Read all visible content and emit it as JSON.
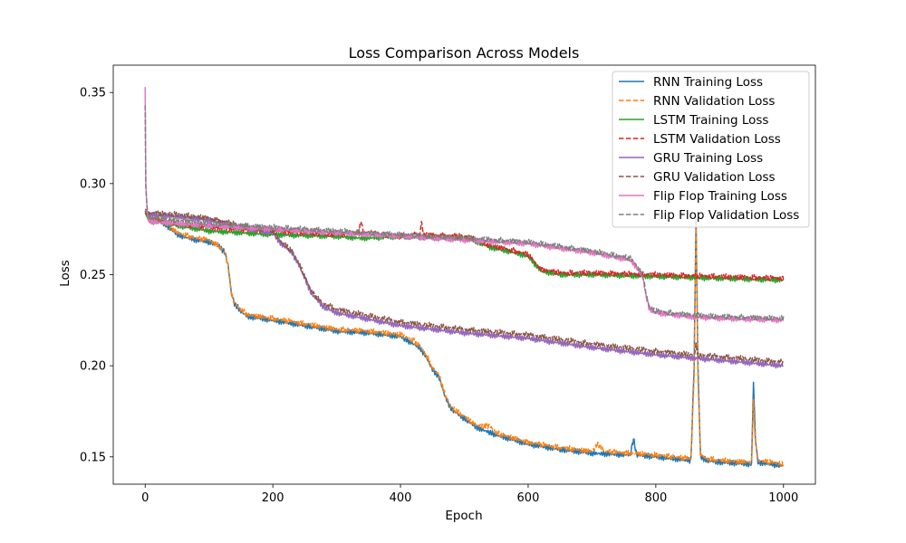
{
  "chart_data": {
    "type": "line",
    "title": "Loss Comparison Across Models",
    "xlabel": "Epoch",
    "ylabel": "Loss",
    "xlim": [
      -50,
      1050
    ],
    "ylim": [
      0.135,
      0.365
    ],
    "xticks": [
      0,
      200,
      400,
      600,
      800,
      1000
    ],
    "yticks": [
      0.15,
      0.2,
      0.25,
      0.3,
      0.35
    ],
    "xtick_labels": [
      "0",
      "200",
      "400",
      "600",
      "800",
      "1000"
    ],
    "ytick_labels": [
      "0.15",
      "0.20",
      "0.25",
      "0.30",
      "0.35"
    ],
    "grid": false,
    "legend_position": "top-right",
    "series": [
      {
        "name": "RNN Training Loss",
        "color": "#1f77b4",
        "dash": "solid",
        "x": [
          0,
          2,
          5,
          10,
          30,
          50,
          80,
          100,
          115,
          125,
          130,
          135,
          140,
          150,
          160,
          200,
          250,
          300,
          350,
          400,
          420,
          430,
          440,
          450,
          460,
          470,
          480,
          500,
          520,
          550,
          600,
          650,
          700,
          760,
          765,
          770,
          800,
          855,
          860,
          863,
          866,
          870,
          880,
          900,
          950,
          953,
          956,
          960,
          1000
        ],
        "y": [
          0.285,
          0.283,
          0.282,
          0.28,
          0.278,
          0.272,
          0.269,
          0.268,
          0.266,
          0.262,
          0.255,
          0.24,
          0.234,
          0.23,
          0.227,
          0.225,
          0.222,
          0.219,
          0.218,
          0.216,
          0.212,
          0.21,
          0.205,
          0.198,
          0.194,
          0.183,
          0.176,
          0.171,
          0.166,
          0.162,
          0.157,
          0.154,
          0.152,
          0.151,
          0.16,
          0.151,
          0.15,
          0.148,
          0.2,
          0.281,
          0.2,
          0.15,
          0.148,
          0.147,
          0.146,
          0.191,
          0.16,
          0.147,
          0.145
        ]
      },
      {
        "name": "RNN Validation Loss",
        "color": "#ff7f0e",
        "dash": "dashed",
        "x": [
          0,
          2,
          5,
          10,
          30,
          50,
          80,
          100,
          115,
          125,
          130,
          135,
          140,
          150,
          160,
          200,
          250,
          300,
          350,
          400,
          420,
          430,
          440,
          450,
          460,
          470,
          480,
          500,
          520,
          540,
          550,
          600,
          650,
          700,
          710,
          720,
          800,
          855,
          860,
          863,
          866,
          870,
          880,
          900,
          950,
          953,
          956,
          960,
          1000
        ],
        "y": [
          0.285,
          0.283,
          0.282,
          0.281,
          0.279,
          0.273,
          0.27,
          0.269,
          0.266,
          0.262,
          0.255,
          0.24,
          0.234,
          0.231,
          0.228,
          0.226,
          0.223,
          0.22,
          0.219,
          0.217,
          0.214,
          0.211,
          0.206,
          0.199,
          0.195,
          0.184,
          0.177,
          0.172,
          0.167,
          0.167,
          0.163,
          0.158,
          0.155,
          0.153,
          0.157,
          0.153,
          0.151,
          0.149,
          0.195,
          0.279,
          0.195,
          0.151,
          0.149,
          0.148,
          0.147,
          0.18,
          0.158,
          0.148,
          0.146
        ]
      },
      {
        "name": "LSTM Training Loss",
        "color": "#2ca02c",
        "dash": "solid",
        "x": [
          0,
          5,
          20,
          50,
          100,
          150,
          200,
          300,
          340,
          400,
          500,
          520,
          540,
          580,
          600,
          620,
          650,
          700,
          800,
          900,
          1000
        ],
        "y": [
          0.284,
          0.28,
          0.279,
          0.277,
          0.274,
          0.273,
          0.272,
          0.271,
          0.27,
          0.271,
          0.27,
          0.268,
          0.265,
          0.262,
          0.26,
          0.252,
          0.25,
          0.25,
          0.249,
          0.248,
          0.247
        ]
      },
      {
        "name": "LSTM Validation Loss",
        "color": "#d62728",
        "dash": "dashed",
        "x": [
          0,
          5,
          20,
          50,
          100,
          150,
          200,
          300,
          335,
          338,
          342,
          400,
          430,
          433,
          436,
          500,
          520,
          540,
          580,
          600,
          620,
          650,
          700,
          800,
          900,
          1000
        ],
        "y": [
          0.285,
          0.281,
          0.28,
          0.278,
          0.276,
          0.275,
          0.274,
          0.272,
          0.273,
          0.28,
          0.273,
          0.271,
          0.272,
          0.279,
          0.272,
          0.271,
          0.269,
          0.266,
          0.263,
          0.261,
          0.253,
          0.251,
          0.251,
          0.25,
          0.249,
          0.248
        ]
      },
      {
        "name": "GRU Training Loss",
        "color": "#9467bd",
        "dash": "solid",
        "x": [
          0,
          5,
          50,
          100,
          150,
          200,
          210,
          230,
          240,
          250,
          260,
          270,
          280,
          300,
          400,
          500,
          600,
          700,
          800,
          900,
          1000
        ],
        "y": [
          0.285,
          0.283,
          0.282,
          0.28,
          0.276,
          0.273,
          0.268,
          0.262,
          0.256,
          0.248,
          0.24,
          0.236,
          0.232,
          0.229,
          0.222,
          0.218,
          0.215,
          0.21,
          0.206,
          0.203,
          0.2
        ]
      },
      {
        "name": "GRU Validation Loss",
        "color": "#8c564b",
        "dash": "dashed",
        "x": [
          0,
          5,
          50,
          100,
          150,
          200,
          210,
          230,
          240,
          250,
          260,
          270,
          280,
          300,
          400,
          500,
          600,
          700,
          800,
          860,
          863,
          866,
          900,
          1000
        ],
        "y": [
          0.286,
          0.284,
          0.283,
          0.281,
          0.277,
          0.274,
          0.269,
          0.263,
          0.257,
          0.249,
          0.241,
          0.237,
          0.234,
          0.231,
          0.224,
          0.22,
          0.217,
          0.212,
          0.208,
          0.206,
          0.211,
          0.206,
          0.205,
          0.202
        ]
      },
      {
        "name": "Flip Flop Training Loss",
        "color": "#e377c2",
        "dash": "solid",
        "x": [
          0,
          1,
          3,
          5,
          10,
          50,
          100,
          200,
          300,
          400,
          500,
          600,
          700,
          760,
          770,
          780,
          785,
          790,
          800,
          850,
          900,
          1000
        ],
        "y": [
          0.353,
          0.3,
          0.285,
          0.28,
          0.279,
          0.278,
          0.277,
          0.275,
          0.273,
          0.271,
          0.269,
          0.267,
          0.262,
          0.258,
          0.254,
          0.248,
          0.238,
          0.231,
          0.229,
          0.227,
          0.226,
          0.225
        ]
      },
      {
        "name": "Flip Flop Validation Loss",
        "color": "#7f7f7f",
        "dash": "dashed",
        "x": [
          0,
          1,
          3,
          5,
          10,
          50,
          100,
          200,
          300,
          400,
          500,
          600,
          700,
          760,
          770,
          780,
          785,
          790,
          800,
          850,
          900,
          1000
        ],
        "y": [
          0.343,
          0.298,
          0.287,
          0.282,
          0.281,
          0.28,
          0.278,
          0.276,
          0.274,
          0.272,
          0.27,
          0.268,
          0.263,
          0.259,
          0.255,
          0.249,
          0.239,
          0.232,
          0.23,
          0.228,
          0.227,
          0.226
        ]
      }
    ]
  }
}
